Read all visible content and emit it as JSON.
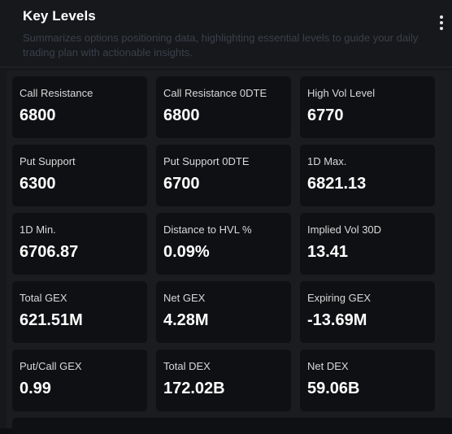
{
  "header": {
    "title": "Key Levels",
    "subtitle": "Summarizes options positioning data, highlighting essential levels to guide your daily trading plan with actionable insights.",
    "menu_icon": "more-vertical-icon"
  },
  "levels": [
    {
      "label": "Call Resistance",
      "value": "6800"
    },
    {
      "label": "Call Resistance 0DTE",
      "value": "6800"
    },
    {
      "label": "High Vol Level",
      "value": "6770"
    },
    {
      "label": "Put Support",
      "value": "6300"
    },
    {
      "label": "Put Support 0DTE",
      "value": "6700"
    },
    {
      "label": "1D Max.",
      "value": "6821.13"
    },
    {
      "label": "1D Min.",
      "value": "6706.87"
    },
    {
      "label": "Distance to HVL %",
      "value": "0.09%"
    },
    {
      "label": "Implied Vol 30D",
      "value": "13.41"
    },
    {
      "label": "Total GEX",
      "value": "621.51M"
    },
    {
      "label": "Net GEX",
      "value": "4.28M"
    },
    {
      "label": "Expiring GEX",
      "value": "-13.69M"
    },
    {
      "label": "Put/Call GEX",
      "value": "0.99"
    },
    {
      "label": "Total DEX",
      "value": "172.02B"
    },
    {
      "label": "Net DEX",
      "value": "59.06B"
    }
  ]
}
